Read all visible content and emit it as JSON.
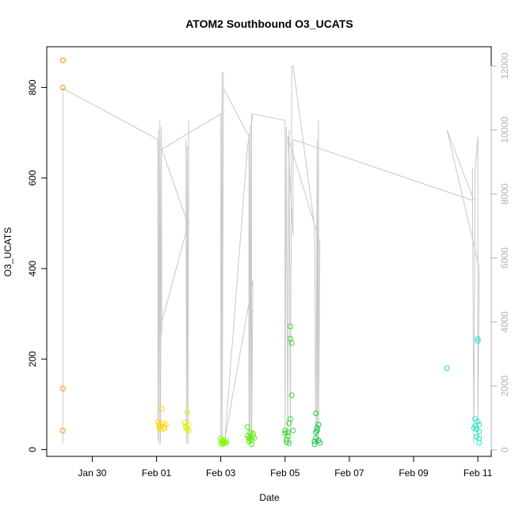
{
  "chart_data": {
    "type": "scatter",
    "title": "ATOM2 Southbound O3_UCATS",
    "xlabel": "Date",
    "ylabel": "O3_UCATS",
    "xlim": [
      "2017-01-28T14:00",
      "2017-02-11T10:00"
    ],
    "ylim": [
      -15,
      890
    ],
    "y2lim": [
      -200,
      12600
    ],
    "x_ticks": [
      {
        "value": "2017-01-30",
        "label": "Jan 30"
      },
      {
        "value": "2017-02-01",
        "label": "Feb 01"
      },
      {
        "value": "2017-02-03",
        "label": "Feb 03"
      },
      {
        "value": "2017-02-05",
        "label": "Feb 05"
      },
      {
        "value": "2017-02-07",
        "label": "Feb 07"
      },
      {
        "value": "2017-02-09",
        "label": "Feb 09"
      },
      {
        "value": "2017-02-11",
        "label": "Feb 11"
      }
    ],
    "y_ticks": [
      0,
      200,
      400,
      600,
      800
    ],
    "y2_ticks": [
      0,
      2000,
      4000,
      6000,
      8000,
      10000,
      12000
    ],
    "series": [
      {
        "color": "#ff8c00",
        "marker": "open-circle",
        "points": [
          [
            "2017-01-29T02:00",
            860
          ],
          [
            "2017-01-29T02:00",
            800
          ],
          [
            "2017-01-29T02:00",
            135
          ],
          [
            "2017-01-29T02:00",
            42
          ]
        ]
      },
      {
        "color": "#ffd700",
        "marker": "open-circle",
        "points": [
          [
            "2017-02-01T01:00",
            62
          ],
          [
            "2017-02-01T02:00",
            55
          ],
          [
            "2017-02-01T02:00",
            48
          ],
          [
            "2017-02-01T03:00",
            44
          ],
          [
            "2017-02-01T03:00",
            52
          ],
          [
            "2017-02-01T04:00",
            90
          ],
          [
            "2017-02-01T05:00",
            58
          ],
          [
            "2017-02-01T06:00",
            50
          ],
          [
            "2017-02-01T06:00",
            46
          ],
          [
            "2017-02-01T07:00",
            55
          ]
        ]
      },
      {
        "color": "#dcee00",
        "marker": "open-circle",
        "points": [
          [
            "2017-02-01T21:00",
            60
          ],
          [
            "2017-02-01T22:00",
            52
          ],
          [
            "2017-02-01T22:00",
            48
          ],
          [
            "2017-02-01T23:00",
            82
          ],
          [
            "2017-02-01T23:00",
            45
          ],
          [
            "2017-02-02T00:00",
            42
          ],
          [
            "2017-02-02T00:00",
            55
          ]
        ]
      },
      {
        "color": "#7cfc00",
        "marker": "open-circle",
        "points": [
          [
            "2017-02-03T00:00",
            25
          ],
          [
            "2017-02-03T00:00",
            15
          ],
          [
            "2017-02-03T01:00",
            12
          ],
          [
            "2017-02-03T01:00",
            20
          ],
          [
            "2017-02-03T02:00",
            18
          ],
          [
            "2017-02-03T02:00",
            14
          ],
          [
            "2017-02-03T03:00",
            16
          ],
          [
            "2017-02-03T04:00",
            14
          ],
          [
            "2017-02-03T04:00",
            20
          ]
        ]
      },
      {
        "color": "#50f000",
        "marker": "open-circle",
        "points": [
          [
            "2017-02-03T20:00",
            50
          ],
          [
            "2017-02-03T20:00",
            30
          ],
          [
            "2017-02-03T21:00",
            25
          ],
          [
            "2017-02-03T21:00",
            18
          ],
          [
            "2017-02-03T22:00",
            38
          ],
          [
            "2017-02-03T22:00",
            28
          ],
          [
            "2017-02-03T23:00",
            22
          ],
          [
            "2017-02-03T23:00",
            12
          ],
          [
            "2017-02-04T00:00",
            35
          ],
          [
            "2017-02-04T00:00",
            30
          ],
          [
            "2017-02-04T01:00",
            26
          ]
        ]
      },
      {
        "color": "#2edc2e",
        "marker": "open-circle",
        "points": [
          [
            "2017-02-05T00:00",
            42
          ],
          [
            "2017-02-05T00:00",
            36
          ],
          [
            "2017-02-05T01:00",
            22
          ],
          [
            "2017-02-05T01:00",
            16
          ],
          [
            "2017-02-05T02:00",
            38
          ],
          [
            "2017-02-05T02:00",
            30
          ],
          [
            "2017-02-05T03:00",
            14
          ],
          [
            "2017-02-05T03:00",
            58
          ],
          [
            "2017-02-05T04:00",
            68
          ],
          [
            "2017-02-05T04:00",
            245
          ],
          [
            "2017-02-05T04:00",
            272
          ],
          [
            "2017-02-05T05:00",
            235
          ],
          [
            "2017-02-05T05:00",
            120
          ],
          [
            "2017-02-05T06:00",
            42
          ]
        ]
      },
      {
        "color": "#18c84a",
        "marker": "open-circle",
        "points": [
          [
            "2017-02-05T22:00",
            18
          ],
          [
            "2017-02-05T22:00",
            12
          ],
          [
            "2017-02-05T23:00",
            25
          ],
          [
            "2017-02-05T23:00",
            38
          ],
          [
            "2017-02-05T23:00",
            80
          ],
          [
            "2017-02-06T00:00",
            42
          ],
          [
            "2017-02-06T00:00",
            48
          ],
          [
            "2017-02-06T01:00",
            55
          ],
          [
            "2017-02-06T01:00",
            20
          ],
          [
            "2017-02-06T02:00",
            15
          ]
        ]
      },
      {
        "color": "#20e8a8",
        "marker": "open-circle",
        "points": [
          [
            "2017-02-10T01:00",
            180
          ]
        ]
      },
      {
        "color": "#20e8c8",
        "marker": "open-circle",
        "points": [
          [
            "2017-02-10T21:00",
            48
          ],
          [
            "2017-02-10T22:00",
            68
          ],
          [
            "2017-02-10T22:00",
            52
          ],
          [
            "2017-02-10T23:00",
            45
          ],
          [
            "2017-02-10T23:00",
            28
          ],
          [
            "2017-02-11T00:00",
            245
          ],
          [
            "2017-02-11T00:00",
            240
          ],
          [
            "2017-02-11T00:00",
            62
          ],
          [
            "2017-02-11T01:00",
            55
          ],
          [
            "2017-02-11T01:00",
            15
          ],
          [
            "2017-02-11T01:00",
            25
          ],
          [
            "2017-02-11T01:00",
            40
          ]
        ]
      }
    ],
    "altitude_line": {
      "axis": "right",
      "color": "#c8c8c8",
      "points": [
        [
          "2017-01-29T02:00",
          200
        ],
        [
          "2017-01-29T02:00",
          11300
        ],
        [
          "2017-02-01T01:00",
          9700
        ],
        [
          "2017-02-01T01:00",
          300
        ],
        [
          "2017-02-01T01:30",
          10000
        ],
        [
          "2017-02-01T02:00",
          200
        ],
        [
          "2017-02-01T02:30",
          10300
        ],
        [
          "2017-02-01T03:00",
          200
        ],
        [
          "2017-02-01T03:30",
          10100
        ],
        [
          "2017-02-01T04:00",
          3600
        ],
        [
          "2017-02-01T04:00",
          4000
        ],
        [
          "2017-02-01T22:00",
          6800
        ],
        [
          "2017-02-01T22:00",
          9700
        ],
        [
          "2017-02-01T22:30",
          200
        ],
        [
          "2017-02-01T23:00",
          9500
        ],
        [
          "2017-02-01T23:30",
          200
        ],
        [
          "2017-02-02T00:00",
          10300
        ],
        [
          "2017-02-02T00:00",
          6900
        ],
        [
          "2017-02-02T00:00",
          7000
        ],
        [
          "2017-02-01T04:00",
          9400
        ],
        [
          "2017-02-03T00:00",
          10500
        ],
        [
          "2017-02-03T00:00",
          200
        ],
        [
          "2017-02-03T01:00",
          11800
        ],
        [
          "2017-02-03T01:00",
          200
        ],
        [
          "2017-02-03T02:00",
          11800
        ],
        [
          "2017-02-03T02:00",
          11300
        ],
        [
          "2017-02-03T21:00",
          9800
        ],
        [
          "2017-02-03T21:00",
          200
        ],
        [
          "2017-02-03T22:00",
          10100
        ],
        [
          "2017-02-03T22:00",
          200
        ],
        [
          "2017-02-03T23:00",
          10500
        ],
        [
          "2017-02-03T23:00",
          200
        ],
        [
          "2017-02-04T00:00",
          5300
        ],
        [
          "2017-02-03T03:00",
          300
        ],
        [
          "2017-02-03T20:00",
          9500
        ],
        [
          "2017-02-04T00:00",
          10500
        ],
        [
          "2017-02-05T00:00",
          10300
        ],
        [
          "2017-02-05T00:00",
          200
        ],
        [
          "2017-02-05T01:00",
          10100
        ],
        [
          "2017-02-05T02:00",
          200
        ],
        [
          "2017-02-05T03:00",
          10000
        ],
        [
          "2017-02-05T04:00",
          200
        ],
        [
          "2017-02-05T05:00",
          12000
        ],
        [
          "2017-02-05T06:00",
          12000
        ],
        [
          "2017-02-05T22:00",
          7000
        ],
        [
          "2017-02-05T23:00",
          200
        ],
        [
          "2017-02-06T00:00",
          9700
        ],
        [
          "2017-02-06T00:00",
          200
        ],
        [
          "2017-02-06T01:00",
          10300
        ],
        [
          "2017-02-06T01:00",
          200
        ],
        [
          "2017-02-06T02:00",
          6500
        ],
        [
          "2017-02-05T02:00",
          9800
        ],
        [
          "2017-02-05T06:00",
          6700
        ],
        [
          "2017-02-05T06:00",
          9700
        ],
        [
          "2017-02-10T20:00",
          7800
        ],
        [
          "2017-02-10T20:00",
          8800
        ],
        [
          "2017-02-10T21:00",
          200
        ],
        [
          "2017-02-10T22:00",
          8800
        ],
        [
          "2017-02-11T00:00",
          9800
        ],
        [
          "2017-02-11T00:00",
          300
        ],
        [
          "2017-02-11T01:00",
          5700
        ],
        [
          "2017-02-10T01:00",
          10000
        ],
        [
          "2017-02-10T21:00",
          7800
        ]
      ]
    }
  }
}
